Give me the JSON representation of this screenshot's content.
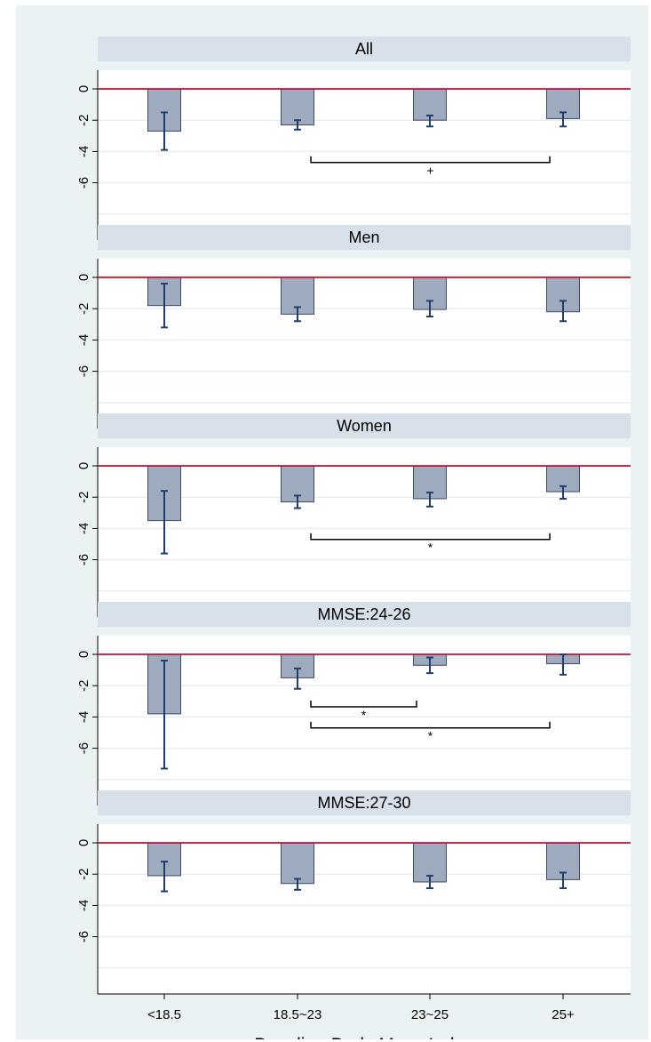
{
  "figure": {
    "xlabel": "Baseline Body Mass Index"
  },
  "colors": {
    "figure_background": "#eaf2f3",
    "plot_background": "#ffffff",
    "panel_header": "#d8e1e9",
    "bar_fill": "#9eabbe",
    "bar_stroke": "#3d4a66",
    "error_bar": "#1f3e6e",
    "reference_line": "#c8102e",
    "gridline": "#e8eff0"
  },
  "chart_data": {
    "type": "bar",
    "layout": "5 stacked panels with shared x axis",
    "categories": [
      "<18.5",
      "18.5~23",
      "23~25",
      "25+"
    ],
    "yticks": [
      0,
      -2,
      -4,
      -6
    ],
    "ylim": [
      -8,
      1.2
    ],
    "reference_line_y": 0,
    "grid": true,
    "panels": [
      {
        "title": "All",
        "values": [
          -2.7,
          -2.3,
          -2.0,
          -1.9
        ],
        "ci_low": [
          -3.9,
          -2.6,
          -2.4,
          -2.4
        ],
        "ci_high": [
          -1.5,
          -2.0,
          -1.7,
          -1.5
        ],
        "brackets": [
          {
            "from": "18.5~23",
            "to": "25+",
            "label": "+"
          }
        ]
      },
      {
        "title": "Men",
        "values": [
          -1.8,
          -2.35,
          -2.05,
          -2.2
        ],
        "ci_low": [
          -3.2,
          -2.8,
          -2.5,
          -2.8
        ],
        "ci_high": [
          -0.4,
          -1.9,
          -1.5,
          -1.5
        ],
        "brackets": []
      },
      {
        "title": "Women",
        "values": [
          -3.5,
          -2.3,
          -2.1,
          -1.65
        ],
        "ci_low": [
          -5.6,
          -2.7,
          -2.6,
          -2.1
        ],
        "ci_high": [
          -1.6,
          -1.9,
          -1.7,
          -1.3
        ],
        "brackets": [
          {
            "from": "18.5~23",
            "to": "25+",
            "label": "*"
          }
        ]
      },
      {
        "title": "MMSE:24-26",
        "values": [
          -3.8,
          -1.5,
          -0.7,
          -0.6
        ],
        "ci_low": [
          -7.3,
          -2.2,
          -1.2,
          -1.3
        ],
        "ci_high": [
          -0.4,
          -0.9,
          -0.2,
          0.0
        ],
        "brackets": [
          {
            "from": "18.5~23",
            "to": "23~25",
            "label": "*"
          },
          {
            "from": "18.5~23",
            "to": "25+",
            "label": "*"
          }
        ]
      },
      {
        "title": "MMSE:27-30",
        "values": [
          -2.1,
          -2.6,
          -2.5,
          -2.35
        ],
        "ci_low": [
          -3.1,
          -3.0,
          -2.9,
          -2.9
        ],
        "ci_high": [
          -1.2,
          -2.3,
          -2.1,
          -1.9
        ],
        "brackets": []
      }
    ]
  }
}
